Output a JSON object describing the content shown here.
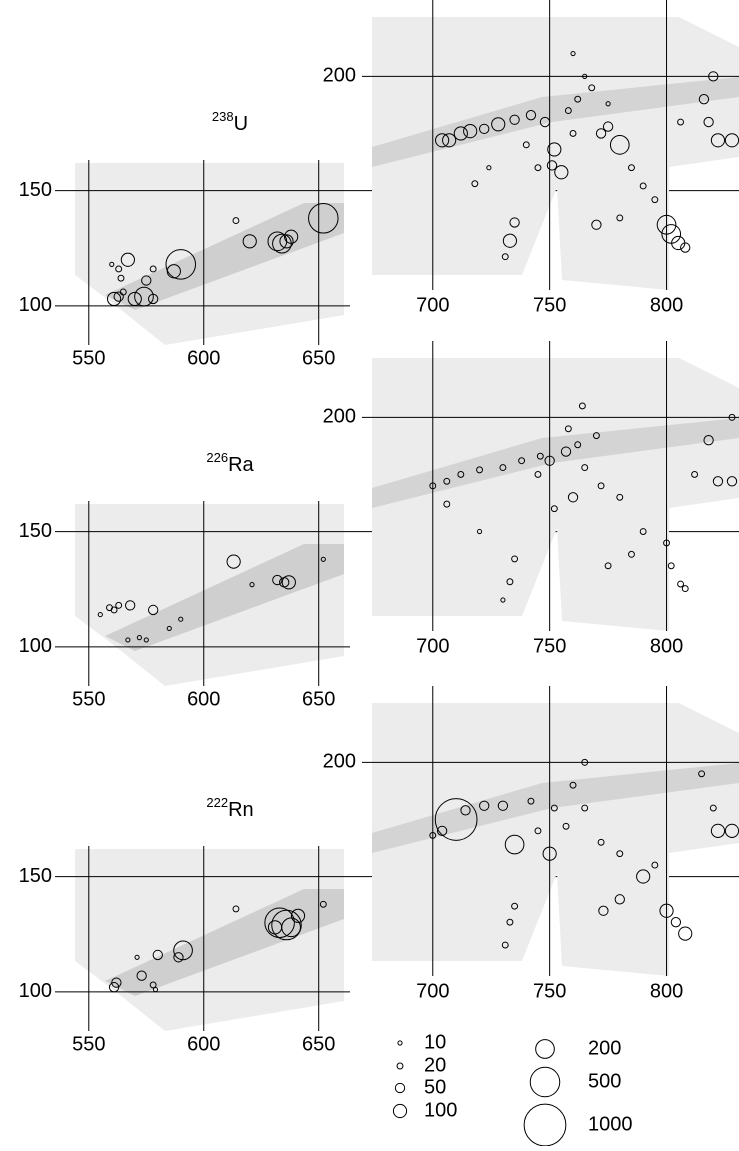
{
  "chart_data": [
    {
      "type": "bubble",
      "title_mass": "238",
      "title_element": "U",
      "x": [
        632,
        634,
        636,
        638,
        652,
        620,
        614,
        590,
        587,
        574,
        570,
        578,
        561,
        563,
        567,
        575,
        578,
        563,
        564,
        560,
        565
      ],
      "y": [
        128,
        127,
        128,
        130,
        138,
        128,
        137,
        118,
        115,
        104,
        103,
        103,
        103,
        104,
        120,
        111,
        116,
        116,
        112,
        118,
        106
      ],
      "sizes": [
        200,
        200,
        100,
        100,
        500,
        100,
        20,
        500,
        100,
        200,
        100,
        50,
        100,
        50,
        100,
        50,
        20,
        20,
        20,
        10,
        20
      ],
      "xlim": [
        544,
        661
      ],
      "ylim": [
        83,
        162
      ],
      "xticks": [
        550,
        600,
        650
      ],
      "yticks": [
        100,
        150
      ]
    },
    {
      "type": "bubble",
      "x": [
        704,
        707,
        712,
        716,
        722,
        728,
        735,
        742,
        748,
        752,
        755,
        751,
        758,
        762,
        768,
        772,
        780,
        775,
        785,
        790,
        795,
        780,
        770,
        800,
        802,
        805,
        808,
        733,
        735,
        731,
        828,
        822,
        818,
        816,
        820,
        806,
        760,
        765,
        724,
        718,
        740,
        745,
        760,
        775
      ],
      "y": [
        172,
        172,
        175,
        176,
        177,
        179,
        181,
        183,
        180,
        168,
        158,
        161,
        185,
        190,
        195,
        175,
        170,
        178,
        160,
        152,
        146,
        138,
        135,
        135,
        131,
        127,
        125,
        128,
        136,
        121,
        172,
        172,
        180,
        190,
        200,
        180,
        210,
        200,
        160,
        153,
        170,
        160,
        175,
        188
      ],
      "sizes": [
        100,
        100,
        100,
        100,
        50,
        100,
        50,
        50,
        50,
        100,
        100,
        50,
        20,
        20,
        20,
        50,
        200,
        50,
        20,
        20,
        20,
        20,
        50,
        200,
        200,
        100,
        50,
        100,
        50,
        20,
        100,
        100,
        50,
        50,
        50,
        20,
        10,
        10,
        10,
        20,
        20,
        20,
        20,
        10
      ],
      "xlim": [
        674,
        831
      ],
      "ylim": [
        113,
        226
      ],
      "xticks": [
        700,
        750,
        800
      ],
      "yticks": [
        200
      ]
    },
    {
      "type": "bubble",
      "title_mass": "226",
      "title_element": "Ra",
      "x": [
        637,
        635,
        632,
        613,
        621,
        578,
        568,
        559,
        561,
        563,
        555,
        572,
        567,
        575,
        585,
        590,
        652
      ],
      "y": [
        128,
        128,
        129,
        137,
        127,
        116,
        118,
        117,
        116,
        118,
        114,
        104,
        103,
        103,
        108,
        112,
        138
      ],
      "sizes": [
        100,
        50,
        50,
        100,
        10,
        50,
        50,
        20,
        20,
        20,
        10,
        10,
        10,
        10,
        10,
        10,
        10
      ],
      "xlim": [
        544,
        661
      ],
      "ylim": [
        83,
        162
      ],
      "xticks": [
        550,
        600,
        650
      ],
      "yticks": [
        100,
        150
      ]
    },
    {
      "type": "bubble",
      "x": [
        700,
        706,
        712,
        720,
        730,
        738,
        746,
        750,
        757,
        762,
        770,
        765,
        772,
        780,
        790,
        800,
        785,
        775,
        760,
        752,
        733,
        735,
        730,
        802,
        806,
        808,
        822,
        828,
        818,
        828,
        706,
        720,
        745,
        758,
        764,
        812
      ],
      "y": [
        170,
        172,
        175,
        177,
        178,
        181,
        183,
        181,
        185,
        188,
        192,
        178,
        170,
        165,
        150,
        145,
        140,
        135,
        165,
        160,
        128,
        138,
        120,
        135,
        127,
        125,
        172,
        172,
        190,
        200,
        162,
        150,
        175,
        195,
        205,
        175
      ],
      "sizes": [
        20,
        20,
        20,
        20,
        20,
        20,
        20,
        50,
        50,
        20,
        20,
        20,
        20,
        20,
        20,
        20,
        20,
        20,
        50,
        20,
        20,
        20,
        10,
        20,
        20,
        20,
        50,
        50,
        50,
        20,
        20,
        10,
        20,
        20,
        20,
        20
      ],
      "xlim": [
        674,
        831
      ],
      "ylim": [
        113,
        226
      ],
      "xticks": [
        700,
        750,
        800
      ],
      "yticks": [
        200
      ]
    },
    {
      "type": "bubble",
      "title_mass": "222",
      "title_element": "Rn",
      "x": [
        633,
        636,
        638,
        641,
        631,
        652,
        614,
        591,
        589,
        580,
        573,
        578,
        579,
        561,
        562,
        571
      ],
      "y": [
        130,
        129,
        128,
        133,
        128,
        138,
        136,
        118,
        115,
        116,
        107,
        103,
        101,
        102,
        104,
        115
      ],
      "sizes": [
        500,
        500,
        200,
        100,
        100,
        20,
        20,
        200,
        50,
        50,
        50,
        20,
        10,
        50,
        50,
        10
      ],
      "xlim": [
        544,
        661
      ],
      "ylim": [
        83,
        162
      ],
      "xticks": [
        550,
        600,
        650
      ],
      "yticks": [
        100,
        150
      ]
    },
    {
      "type": "bubble",
      "x": [
        710,
        704,
        700,
        714,
        722,
        730,
        742,
        735,
        750,
        752,
        760,
        765,
        772,
        780,
        790,
        795,
        780,
        773,
        800,
        804,
        808,
        733,
        735,
        731,
        822,
        828,
        820,
        815,
        745,
        757,
        765
      ],
      "y": [
        175,
        170,
        168,
        179,
        181,
        181,
        183,
        164,
        160,
        180,
        190,
        200,
        165,
        160,
        150,
        155,
        140,
        135,
        135,
        130,
        125,
        130,
        137,
        120,
        170,
        170,
        180,
        195,
        170,
        172,
        180
      ],
      "sizes": [
        1000,
        50,
        20,
        50,
        50,
        50,
        20,
        200,
        100,
        20,
        20,
        20,
        20,
        20,
        100,
        20,
        50,
        50,
        100,
        50,
        100,
        20,
        20,
        20,
        100,
        100,
        20,
        20,
        20,
        20,
        20
      ],
      "xlim": [
        674,
        831
      ],
      "ylim": [
        113,
        226
      ],
      "xticks": [
        700,
        750,
        800
      ],
      "yticks": [
        200
      ]
    }
  ],
  "size_legend": {
    "values": [
      10,
      20,
      50,
      100,
      200,
      500,
      1000
    ]
  }
}
